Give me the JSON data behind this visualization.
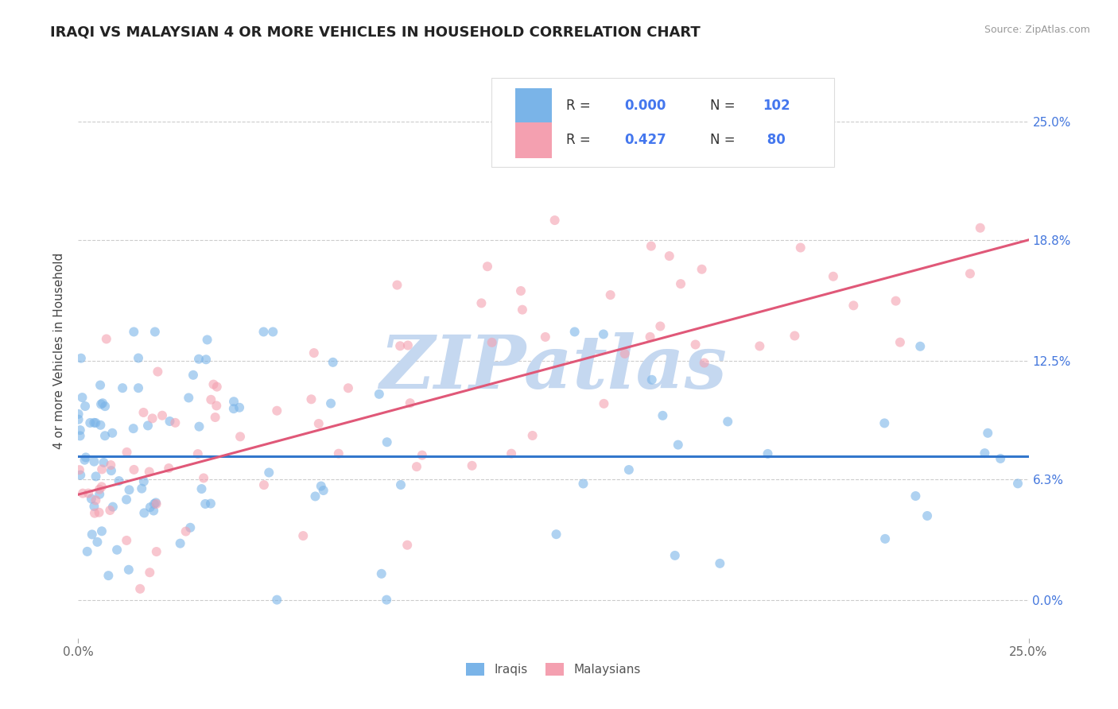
{
  "title": "IRAQI VS MALAYSIAN 4 OR MORE VEHICLES IN HOUSEHOLD CORRELATION CHART",
  "source_text": "Source: ZipAtlas.com",
  "ylabel": "4 or more Vehicles in Household",
  "xmin": 0.0,
  "xmax": 25.0,
  "ymin": -2.0,
  "ymax": 28.0,
  "ytick_labels": [
    "0.0%",
    "6.3%",
    "12.5%",
    "18.8%",
    "25.0%"
  ],
  "ytick_values": [
    0.0,
    6.3,
    12.5,
    18.8,
    25.0
  ],
  "grid_color": "#cccccc",
  "background_color": "#ffffff",
  "watermark_text": "ZIPatlas",
  "watermark_color": "#c5d8f0",
  "iraqi_color": "#7ab4e8",
  "malaysian_color": "#f4a0b0",
  "iraqi_R": 0.0,
  "iraqi_N": 102,
  "malaysian_R": 0.427,
  "malaysian_N": 80,
  "legend_label_iraqi": "Iraqis",
  "legend_label_malaysian": "Malaysians",
  "iraqi_line_y0": 7.5,
  "iraqi_line_y1": 7.5,
  "malaysian_line_y0": 5.5,
  "malaysian_line_y1": 18.8
}
